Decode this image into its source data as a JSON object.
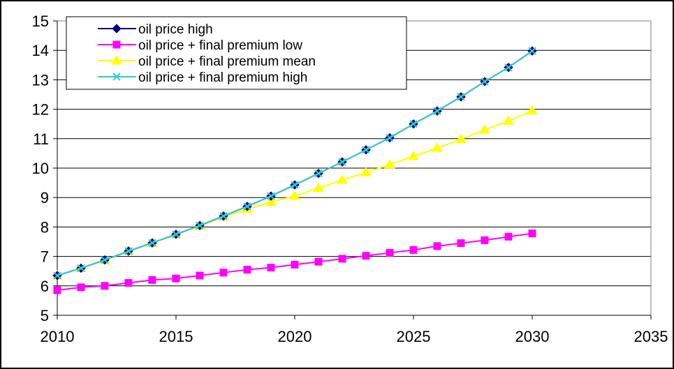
{
  "chart_data": {
    "type": "line",
    "title": "",
    "xlabel": "",
    "ylabel": "",
    "xlim": [
      2010,
      2035
    ],
    "ylim": [
      5,
      15
    ],
    "x_ticks": [
      2010,
      2015,
      2020,
      2025,
      2030,
      2035
    ],
    "y_ticks": [
      5,
      6,
      7,
      8,
      9,
      10,
      11,
      12,
      13,
      14,
      15
    ],
    "grid": "horizontal",
    "legend_position": "top-left",
    "x": [
      2010,
      2011,
      2012,
      2013,
      2014,
      2015,
      2016,
      2017,
      2018,
      2019,
      2020,
      2021,
      2022,
      2023,
      2024,
      2025,
      2026,
      2027,
      2028,
      2029,
      2030
    ],
    "series": [
      {
        "name": "oil price high",
        "color": "#000080",
        "marker": "diamond",
        "values": [
          6.35,
          6.6,
          6.88,
          7.18,
          7.46,
          7.75,
          8.05,
          8.37,
          8.7,
          9.05,
          9.43,
          9.82,
          10.21,
          10.62,
          11.03,
          11.5,
          11.94,
          12.42,
          12.94,
          13.42,
          13.98
        ]
      },
      {
        "name": "oil price + final premium low",
        "color": "#ff00ff",
        "marker": "square",
        "values": [
          5.85,
          5.95,
          6.0,
          6.1,
          6.2,
          6.25,
          6.35,
          6.45,
          6.55,
          6.62,
          6.72,
          6.82,
          6.92,
          7.02,
          7.12,
          7.22,
          7.35,
          7.45,
          7.55,
          7.67,
          7.78
        ]
      },
      {
        "name": "oil price + final premium mean",
        "color": "#ffff00",
        "marker": "triangle",
        "values": [
          6.35,
          6.6,
          6.88,
          7.18,
          7.46,
          7.75,
          8.03,
          8.35,
          8.6,
          8.85,
          9.05,
          9.32,
          9.6,
          9.85,
          10.12,
          10.4,
          10.68,
          10.98,
          11.3,
          11.6,
          11.95
        ]
      },
      {
        "name": "oil price + final premium high",
        "color": "#33cccc",
        "marker": "x",
        "values": [
          6.35,
          6.6,
          6.88,
          7.18,
          7.46,
          7.75,
          8.05,
          8.37,
          8.7,
          9.05,
          9.43,
          9.82,
          10.21,
          10.62,
          11.03,
          11.5,
          11.94,
          12.42,
          12.94,
          13.42,
          13.98
        ]
      }
    ]
  }
}
